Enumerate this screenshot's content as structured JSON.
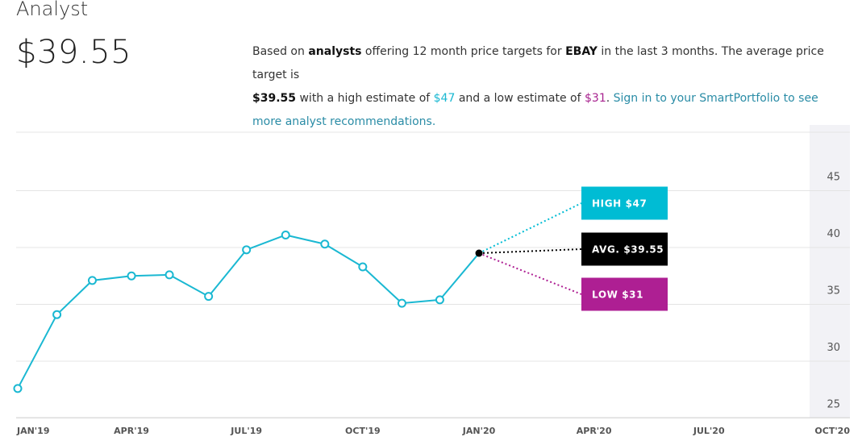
{
  "header": {
    "title": "Analyst",
    "price": "$39.55"
  },
  "description": {
    "p1": "Based on ",
    "analysts": "analysts",
    "p2": " offering 12 month price targets for ",
    "ticker": "EBAY",
    "p3": " in the last 3 months. The average price target is",
    "avg": "$39.55",
    "p4": " with a high estimate of ",
    "high": "$47",
    "p5": " and a low estimate of ",
    "low": "$31",
    "p6": ". ",
    "link": "Sign in to your SmartPortfolio to see more analyst recommendations."
  },
  "colors": {
    "line": "#1ab8d2",
    "high": "#00bcd4",
    "avg": "#000000",
    "low": "#ae1f93",
    "grid": "#e4e4e4",
    "axis_band": "#f2f2f6"
  },
  "chart_data": {
    "type": "line",
    "x": [
      "2019-01-01",
      "2019-02-01",
      "2019-03-01",
      "2019-04-01",
      "2019-05-01",
      "2019-06-01",
      "2019-07-01",
      "2019-08-01",
      "2019-09-01",
      "2019-10-01",
      "2019-11-01",
      "2019-12-01",
      "2020-01-01"
    ],
    "values": [
      27.6,
      34.1,
      37.1,
      37.5,
      37.6,
      35.7,
      39.8,
      41.1,
      40.3,
      38.3,
      35.1,
      35.4,
      39.5
    ],
    "xticks": [
      "JAN'19",
      "APR'19",
      "JUL'19",
      "OCT'19",
      "JAN'20",
      "APR'20",
      "JUL'20",
      "OCT'20"
    ],
    "xtick_dates": [
      "2019-01-01",
      "2019-04-01",
      "2019-07-01",
      "2019-10-01",
      "2020-01-01",
      "2020-04-01",
      "2020-07-01",
      "2020-10-01"
    ],
    "yticks": [
      25,
      30,
      35,
      40,
      45
    ],
    "ylim": [
      24,
      50
    ],
    "grid": true,
    "forecast": {
      "from": 39.55,
      "high": {
        "label": "HIGH $47",
        "value": 47
      },
      "avg": {
        "label": "AVG. $39.55",
        "value": 39.55
      },
      "low": {
        "label": "LOW $31",
        "value": 31
      }
    }
  }
}
